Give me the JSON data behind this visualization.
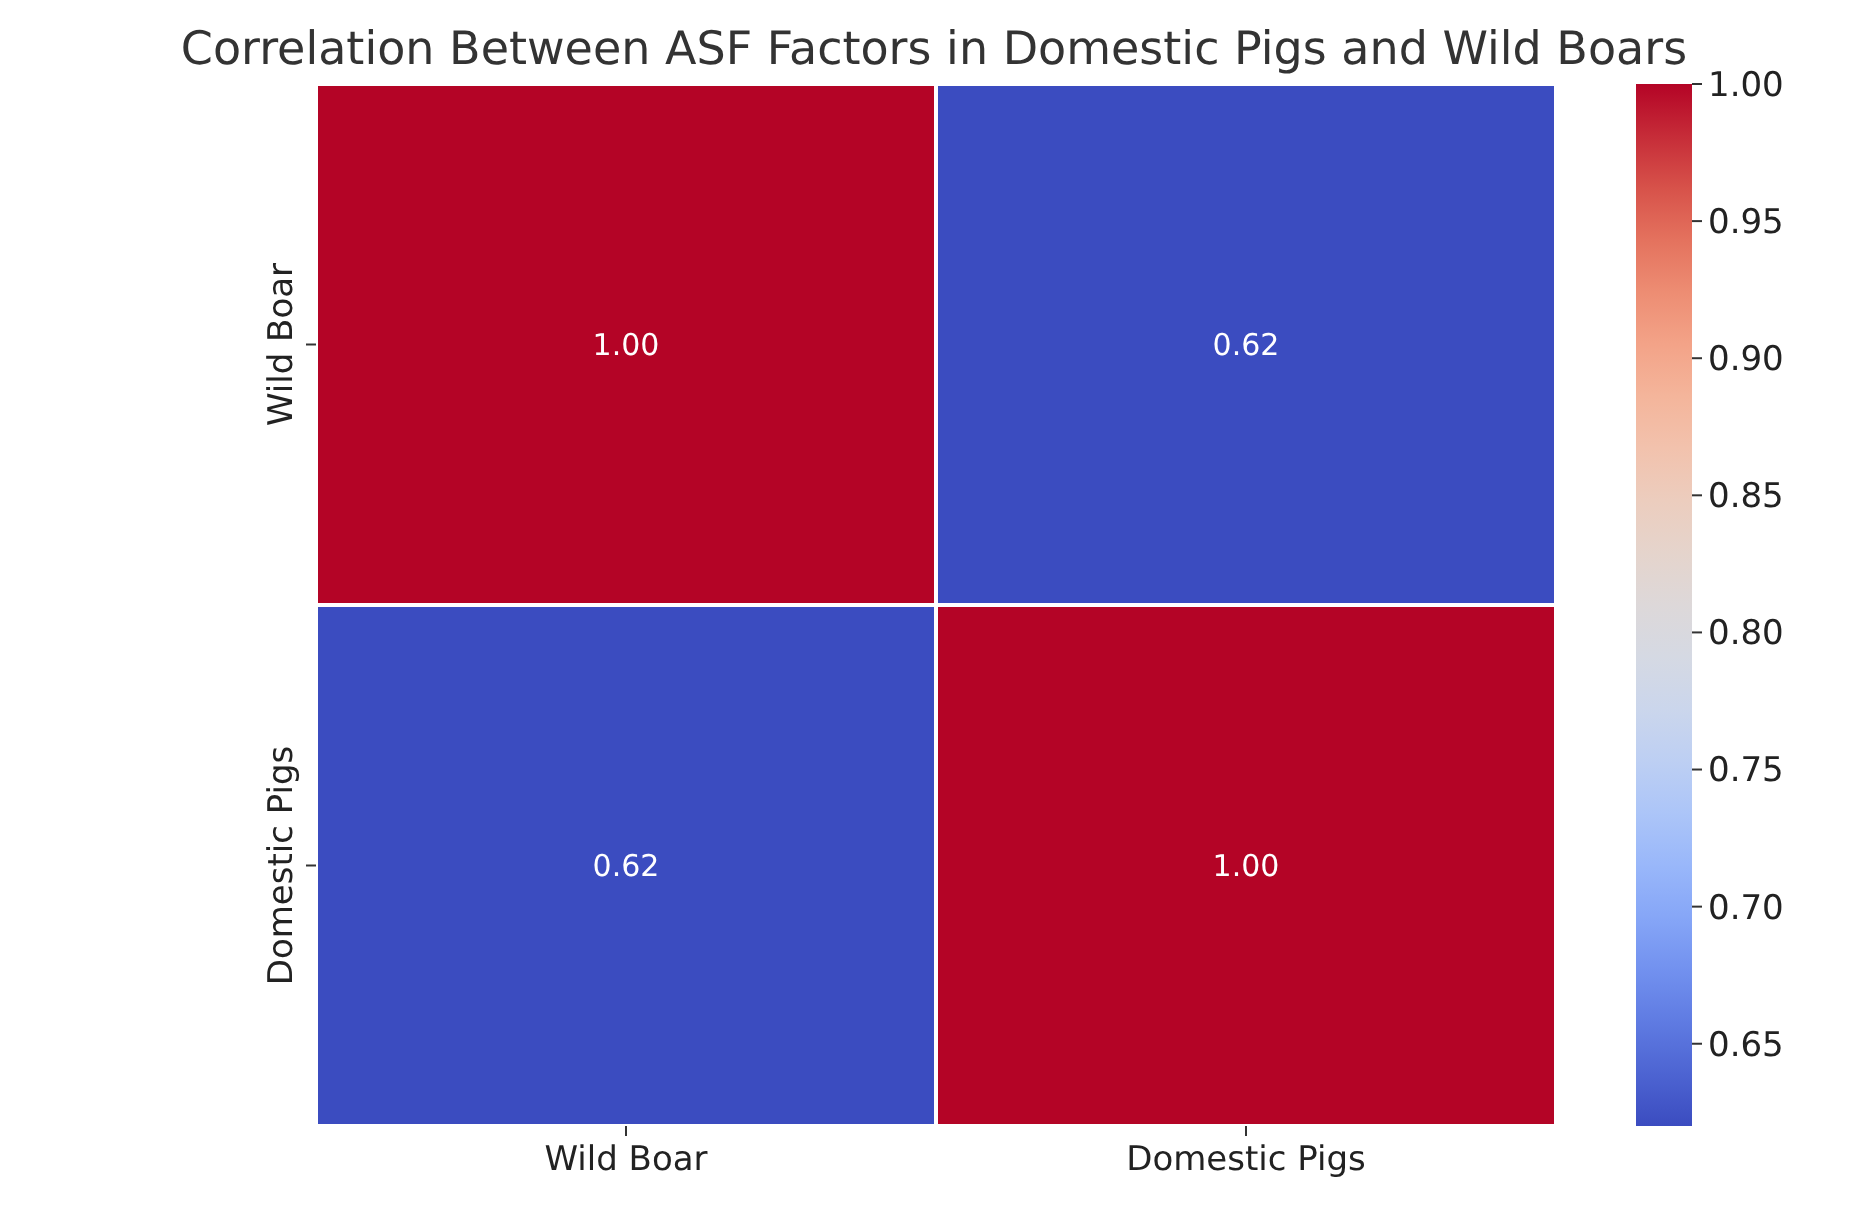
{
  "chart_data": {
    "type": "heatmap",
    "title": "Correlation Between ASF Factors in Domestic Pigs and Wild Boars",
    "categories": [
      "Wild Boar",
      "Domestic Pigs"
    ],
    "y_categories": [
      "Wild Boar",
      "Domestic Pigs"
    ],
    "cells": [
      [
        1.0,
        0.62
      ],
      [
        0.62,
        1.0
      ]
    ],
    "cell_labels": [
      [
        "1.00",
        "0.62"
      ],
      [
        "0.62",
        "1.00"
      ]
    ],
    "clim": [
      0.62,
      1.0
    ],
    "cticks": [
      {
        "value": 0.65,
        "label": "0.65"
      },
      {
        "value": 0.7,
        "label": "0.70"
      },
      {
        "value": 0.75,
        "label": "0.75"
      },
      {
        "value": 0.8,
        "label": "0.80"
      },
      {
        "value": 0.85,
        "label": "0.85"
      },
      {
        "value": 0.9,
        "label": "0.90"
      },
      {
        "value": 0.95,
        "label": "0.95"
      },
      {
        "value": 1.0,
        "label": "1.00"
      }
    ]
  }
}
